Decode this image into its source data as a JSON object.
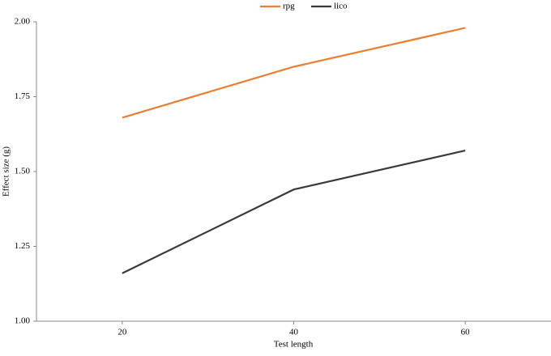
{
  "chart_data": {
    "type": "line",
    "x_label": "Test length",
    "y_label": "Effect size (g)",
    "x": [
      20,
      40,
      60
    ],
    "series": [
      {
        "name": "rpg",
        "color": "#ed7d31",
        "values": [
          1.68,
          1.85,
          1.98
        ]
      },
      {
        "name": "lico",
        "color": "#3a3a3a",
        "values": [
          1.16,
          1.44,
          1.57
        ]
      }
    ],
    "xlim": [
      10,
      70
    ],
    "xticks": [
      20,
      40,
      60
    ],
    "ylim": [
      1,
      2
    ],
    "yticks": [
      {
        "value": 1,
        "label": "1.00"
      },
      {
        "value": 1.25,
        "label": "1.25"
      },
      {
        "value": 1.5,
        "label": "1.50"
      },
      {
        "value": 1.75,
        "label": "1.75"
      },
      {
        "value": 2,
        "label": "2.00"
      }
    ],
    "grid": false,
    "legend": "top"
  }
}
